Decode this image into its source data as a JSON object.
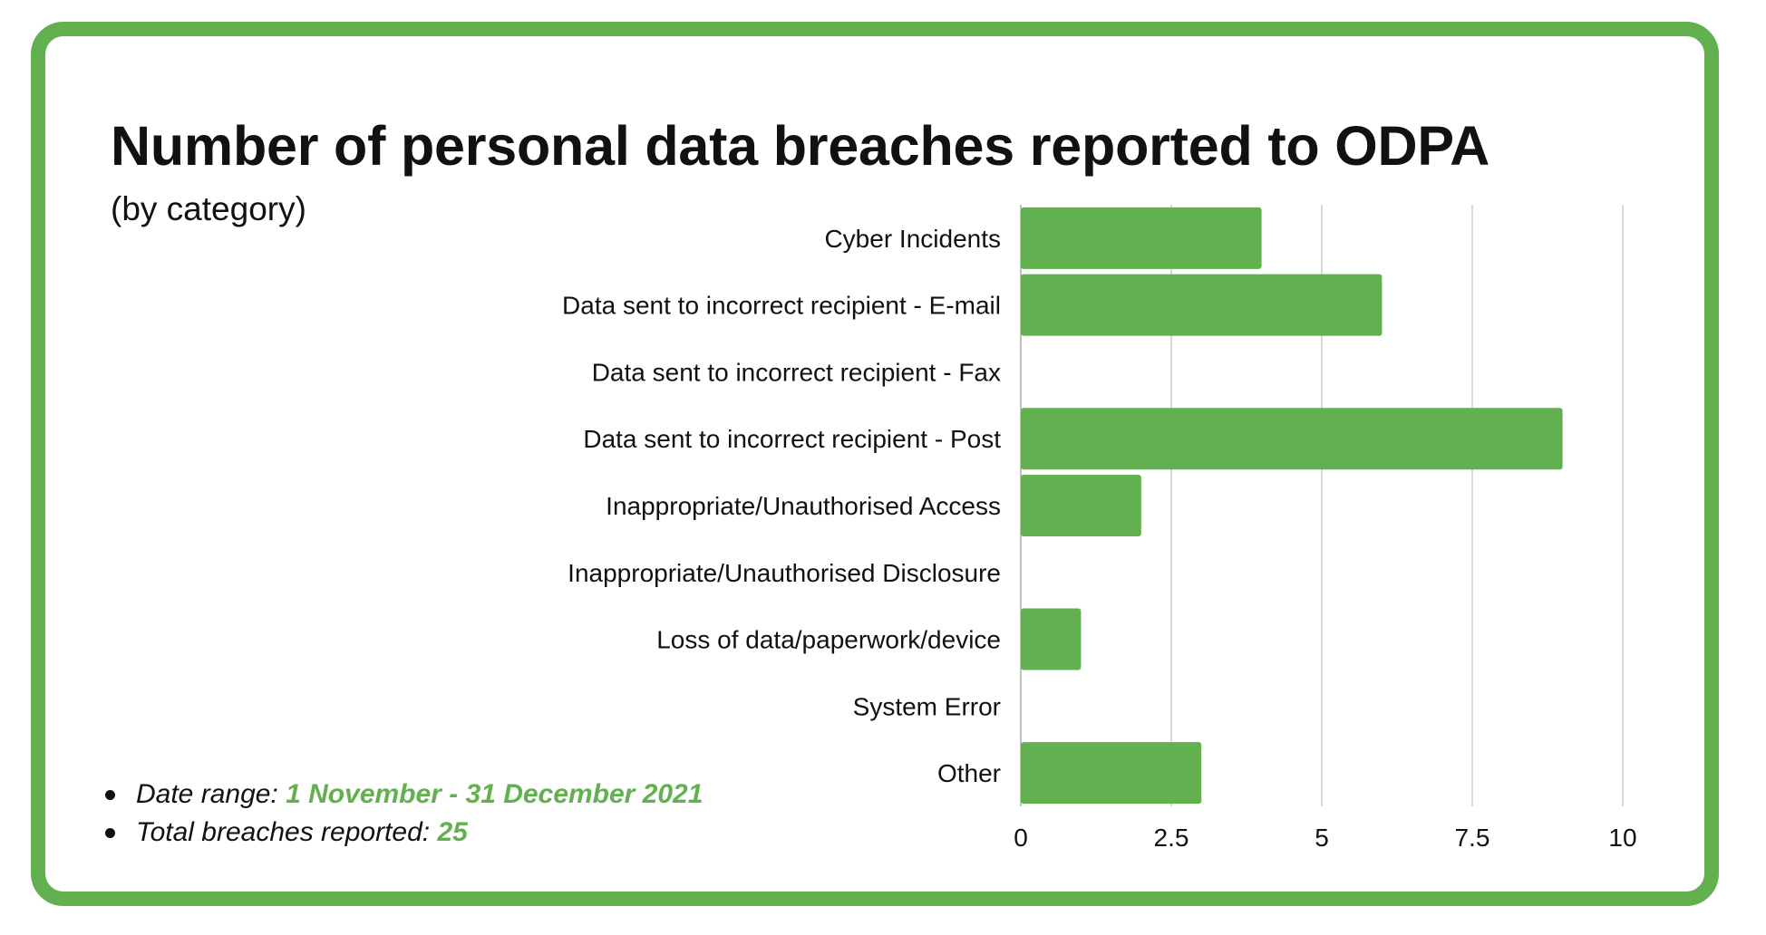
{
  "title": "Number of personal data breaches reported to ODPA",
  "subtitle": "(by category)",
  "colors": {
    "border": "#62b04f",
    "bar": "#62b04f",
    "accent": "#62b04f",
    "grid": "#d9d9d9",
    "text": "#111111"
  },
  "notes": [
    {
      "label": "Date range:",
      "value": "1 November - 31 December 2021"
    },
    {
      "label": "Total breaches reported:",
      "value": "25"
    }
  ],
  "chart_data": {
    "type": "bar",
    "orientation": "horizontal",
    "categories": [
      "Cyber Incidents",
      "Data sent to incorrect recipient - E-mail",
      "Data sent to incorrect recipient - Fax",
      "Data sent to incorrect recipient - Post",
      "Inappropriate/Unauthorised Access",
      "Inappropriate/Unauthorised Disclosure",
      "Loss of data/paperwork/device",
      "System Error",
      "Other"
    ],
    "values": [
      4,
      6,
      0,
      9,
      2,
      0,
      1,
      0,
      3
    ],
    "xlim": [
      0,
      10
    ],
    "xticks": [
      0,
      2.5,
      5,
      7.5,
      10
    ],
    "xtick_labels": [
      "0",
      "2.5",
      "5",
      "7.5",
      "10"
    ],
    "grid": true,
    "legend": "none"
  }
}
